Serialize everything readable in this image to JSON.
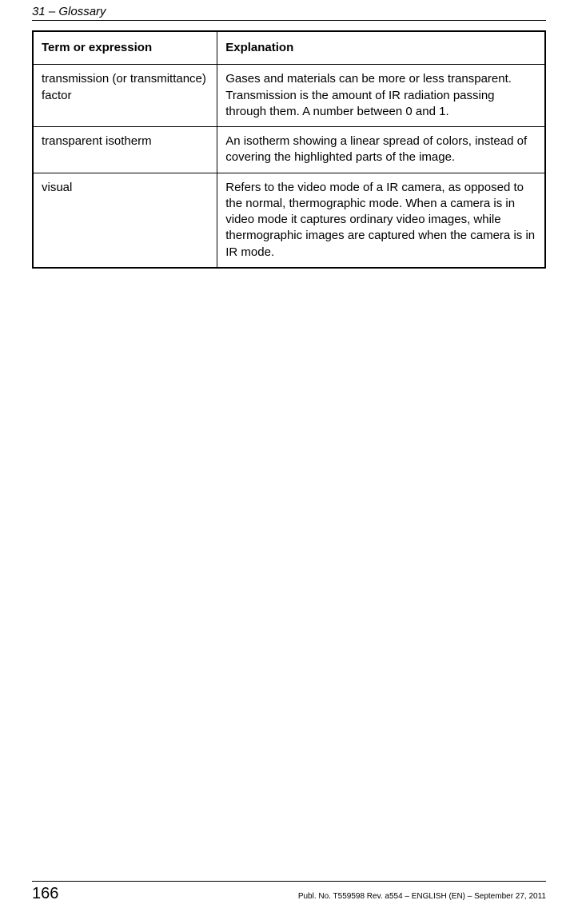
{
  "header": {
    "section_label": "31 – Glossary"
  },
  "table": {
    "columns": {
      "term": "Term or expression",
      "explanation": "Explanation"
    },
    "rows": [
      {
        "term": "transmission (or transmittance) factor",
        "explanation": "Gases and materials can be more or less transparent. Transmission is the amount of IR radiation passing through them. A number between 0 and 1."
      },
      {
        "term": "transparent isotherm",
        "explanation": "An isotherm showing a linear spread of colors, instead of covering the highlighted parts of the image."
      },
      {
        "term": "visual",
        "explanation": "Refers to the video mode of a IR camera, as opposed to the normal, thermographic mode. When a camera is in video mode it captures ordinary video images, while thermographic images are captured when the camera is in IR mode."
      }
    ]
  },
  "footer": {
    "page_number": "166",
    "publication_info": "Publ. No. T559598 Rev. a554 – ENGLISH (EN) – September 27, 2011"
  }
}
